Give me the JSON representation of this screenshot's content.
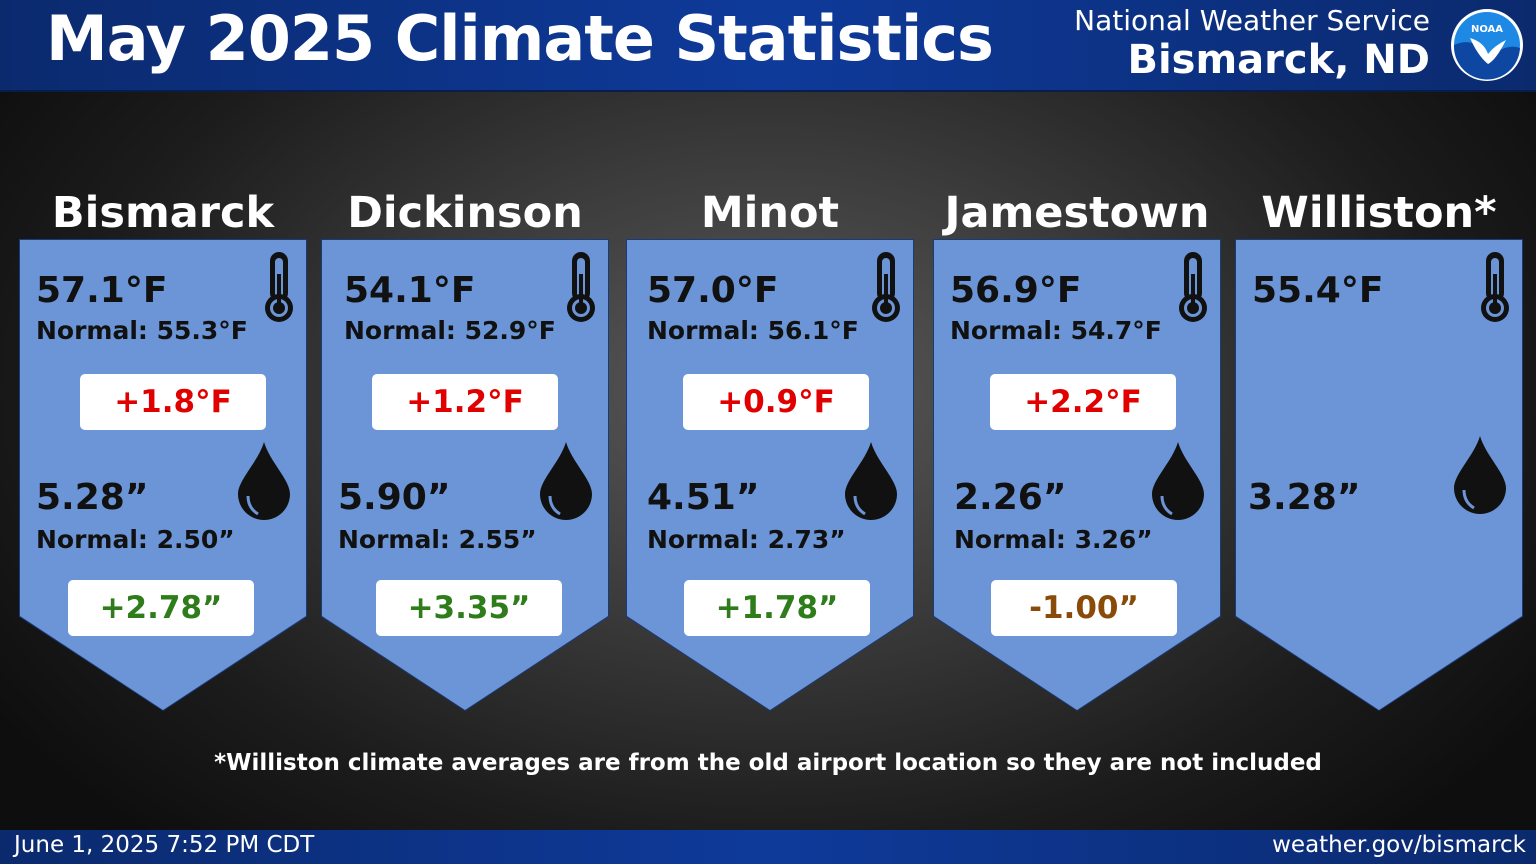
{
  "header": {
    "title": "May 2025 Climate Statistics",
    "org_line1": "National Weather Service",
    "org_line2": "Bismarck, ND",
    "logo_text": "NOAA"
  },
  "stations": [
    {
      "city": "Bismarck",
      "temp": "57.1°F",
      "temp_normal": "Normal: 55.3°F",
      "temp_departure": "+1.8°F",
      "precip": "5.28”",
      "precip_normal": "Normal: 2.50”",
      "precip_departure": "+2.78”",
      "precip_departure_color": "#2e7d1a"
    },
    {
      "city": "Dickinson",
      "temp": "54.1°F",
      "temp_normal": "Normal: 52.9°F",
      "temp_departure": "+1.2°F",
      "precip": "5.90”",
      "precip_normal": "Normal: 2.55”",
      "precip_departure": "+3.35”",
      "precip_departure_color": "#2e7d1a"
    },
    {
      "city": "Minot",
      "temp": "57.0°F",
      "temp_normal": "Normal: 56.1°F",
      "temp_departure": "+0.9°F",
      "precip": "4.51”",
      "precip_normal": "Normal: 2.73”",
      "precip_departure": "+1.78”",
      "precip_departure_color": "#2e7d1a"
    },
    {
      "city": "Jamestown",
      "temp": "56.9°F",
      "temp_normal": "Normal: 54.7°F",
      "temp_departure": "+2.2°F",
      "precip": "2.26”",
      "precip_normal": "Normal: 3.26”",
      "precip_departure": "-1.00”",
      "precip_departure_color": "#8a4a0a"
    },
    {
      "city": "Williston*",
      "temp": "55.4°F",
      "precip": "3.28”"
    }
  ],
  "note": "*Williston climate averages are from the old airport location so they are not included",
  "footer": {
    "date": "June 1, 2025 7:52 PM CDT",
    "site": "weather.gov/bismarck"
  },
  "colors": {
    "temp_departure": "#e00000",
    "panel": "#6b95d6",
    "header": "#0e3a9a"
  },
  "icons": [
    "thermometer-icon",
    "water-drop-icon",
    "noaa-logo"
  ]
}
